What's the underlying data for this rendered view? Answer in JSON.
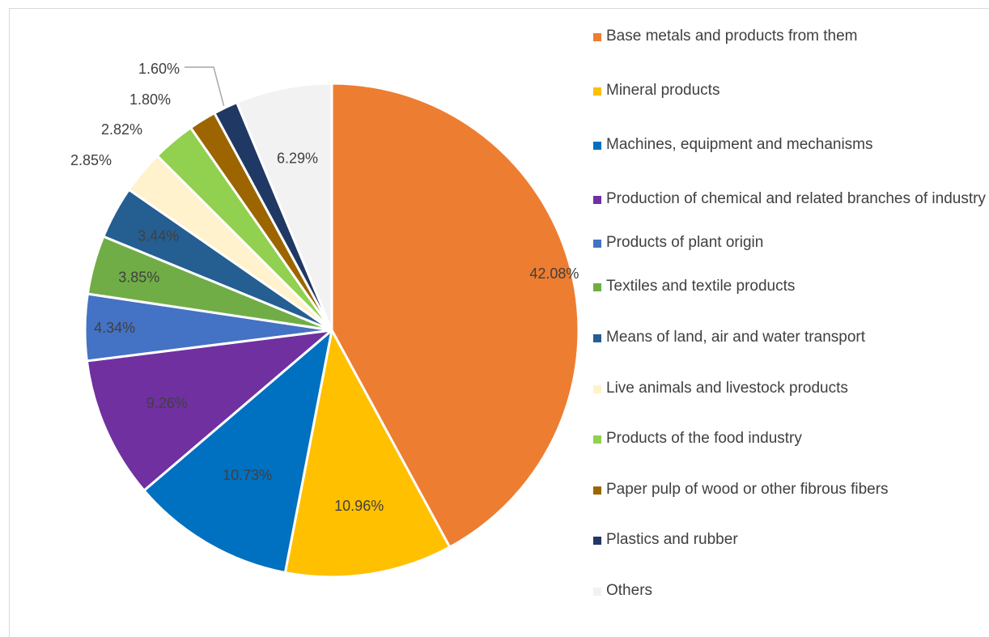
{
  "chart_data": {
    "type": "pie",
    "title": "",
    "start_angle_deg": 0,
    "direction": "clockwise",
    "legend_position": "right",
    "slices": [
      {
        "label": "Base metals and products from them",
        "value": 42.08,
        "display": "42.08%",
        "color": "#ed7d31",
        "label_color": "#404040"
      },
      {
        "label": "Mineral products",
        "value": 10.96,
        "display": "10.96%",
        "color": "#ffc000",
        "label_color": "#404040"
      },
      {
        "label": "Machines, equipment   and mechanisms",
        "value": 10.73,
        "display": "10.73%",
        "color": "#0070c0",
        "label_color": "#404040"
      },
      {
        "label": "Production of chemical and related   branches of industry",
        "value": 9.26,
        "display": "9.26%",
        "color": "#7030a0",
        "label_color": "#404040"
      },
      {
        "label": "Products of plant origin",
        "value": 4.34,
        "display": "4.34%",
        "color": "#4472c4",
        "label_color": "#404040"
      },
      {
        "label": "Textiles and textile products",
        "value": 3.85,
        "display": "3.85%",
        "color": "#70ad47",
        "label_color": "#404040"
      },
      {
        "label": "Means of land, air and water transport",
        "value": 3.44,
        "display": "3.44%",
        "color": "#255e91",
        "label_color": "#404040"
      },
      {
        "label": "Live animals and livestock products",
        "value": 2.85,
        "display": "2.85%",
        "color": "#fff2cc",
        "label_color": "#404040"
      },
      {
        "label": "Products of the food industry",
        "value": 2.82,
        "display": "2.82%",
        "color": "#92d050",
        "label_color": "#404040"
      },
      {
        "label": "Paper pulp of wood or other fibrous fibers",
        "value": 1.8,
        "display": "1.80%",
        "color": "#9c6500",
        "label_color": "#404040"
      },
      {
        "label": "Plastics and rubber",
        "value": 1.6,
        "display": "1.60%",
        "color": "#203864",
        "label_color": "#404040"
      },
      {
        "label": "Others",
        "value": 6.29,
        "display": "6.29%",
        "color": "#f2f2f2",
        "label_color": "#404040"
      }
    ]
  }
}
